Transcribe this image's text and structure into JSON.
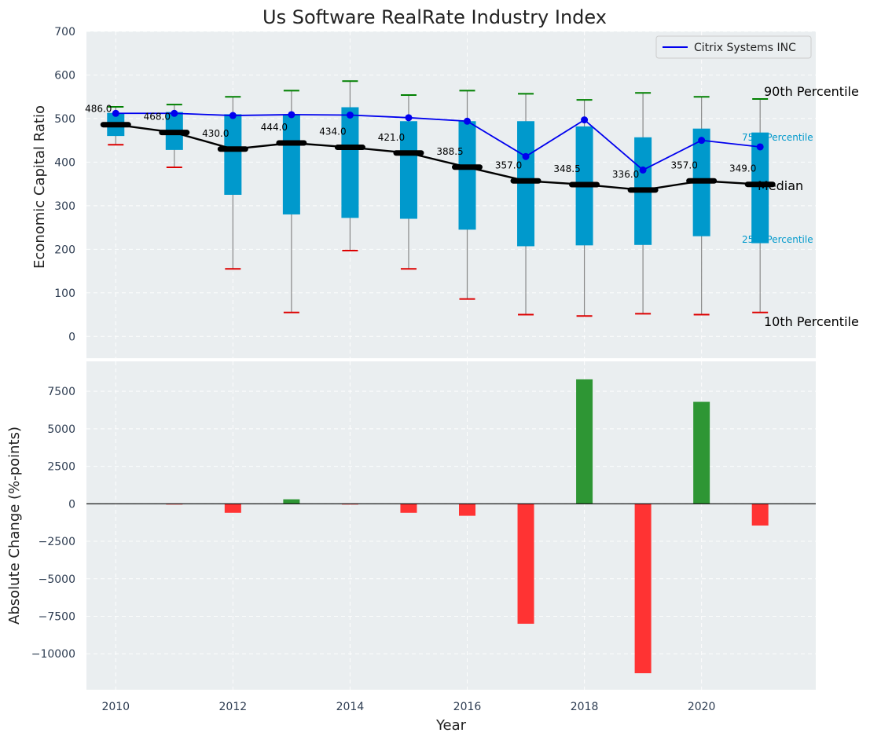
{
  "chart_data": [
    {
      "type": "box",
      "title": "Us Software RealRate Industry Index",
      "ylabel": "Economic Capital Ratio",
      "ylim": [
        -50,
        700
      ],
      "yticks": [
        0,
        100,
        200,
        300,
        400,
        500,
        600,
        700
      ],
      "x": [
        2010,
        2011,
        2012,
        2013,
        2014,
        2015,
        2016,
        2017,
        2018,
        2019,
        2020,
        2021
      ],
      "p90": [
        527,
        532,
        550,
        564,
        586,
        554,
        564,
        557,
        543,
        559,
        550,
        545
      ],
      "p75": [
        513,
        515,
        510,
        510,
        526,
        494,
        494,
        494,
        482,
        457,
        477,
        468
      ],
      "median": [
        486.0,
        468.0,
        430.0,
        444.0,
        434.0,
        421.0,
        388.5,
        357.0,
        348.5,
        336.0,
        357.0,
        349.0
      ],
      "median_labels": [
        "486.0",
        "468.0",
        "430.0",
        "444.0",
        "434.0",
        "421.0",
        "388.5",
        "357.0",
        "348.5",
        "336.0",
        "357.0",
        "349.0"
      ],
      "p25": [
        460,
        428,
        325,
        280,
        272,
        270,
        245,
        207,
        209,
        210,
        230,
        214
      ],
      "p10": [
        440,
        388,
        155,
        55,
        197,
        155,
        86,
        50,
        47,
        52,
        50,
        55
      ],
      "series": [
        {
          "name": "Citrix Systems INC",
          "values": [
            512,
            512,
            507,
            509,
            508,
            502,
            494,
            413,
            497,
            382,
            450,
            435
          ],
          "color": "#0000ee"
        }
      ],
      "legend": {
        "position": "top-right",
        "entries": [
          "Citrix Systems INC"
        ]
      },
      "percentile_labels": {
        "p90": "90th Percentile",
        "p75": "75th Percentile",
        "median": "Median",
        "p25": "25th Percentile",
        "p10": "10th Percentile"
      },
      "colors": {
        "box": "#0099cc",
        "median": "#000000",
        "whisker_top": "#008000",
        "whisker_bottom": "#dd0000",
        "whisker_line": "#888888",
        "background": "#eaeef0"
      },
      "grid": true
    },
    {
      "type": "bar",
      "xlabel": "Year",
      "ylabel": "Absolute Change (%-points)",
      "ylim": [
        -12400,
        9500
      ],
      "yticks": [
        -10000,
        -7500,
        -5000,
        -2500,
        0,
        2500,
        5000,
        7500
      ],
      "ytick_labels": [
        "−10000",
        "−7500",
        "−5000",
        "−2500",
        "0",
        "2500",
        "5000",
        "7500"
      ],
      "xlim": [
        2009.5,
        2021.95
      ],
      "xticks": [
        2010,
        2012,
        2014,
        2016,
        2018,
        2020
      ],
      "x": [
        2010,
        2011,
        2012,
        2013,
        2014,
        2015,
        2016,
        2017,
        2018,
        2019,
        2020,
        2021
      ],
      "values": [
        0,
        -50,
        -600,
        300,
        -50,
        -600,
        -800,
        -8000,
        8300,
        -11300,
        6800,
        -1450
      ],
      "colors": {
        "positive": "#2e9634",
        "negative": "#ff3333"
      },
      "grid": true
    }
  ]
}
